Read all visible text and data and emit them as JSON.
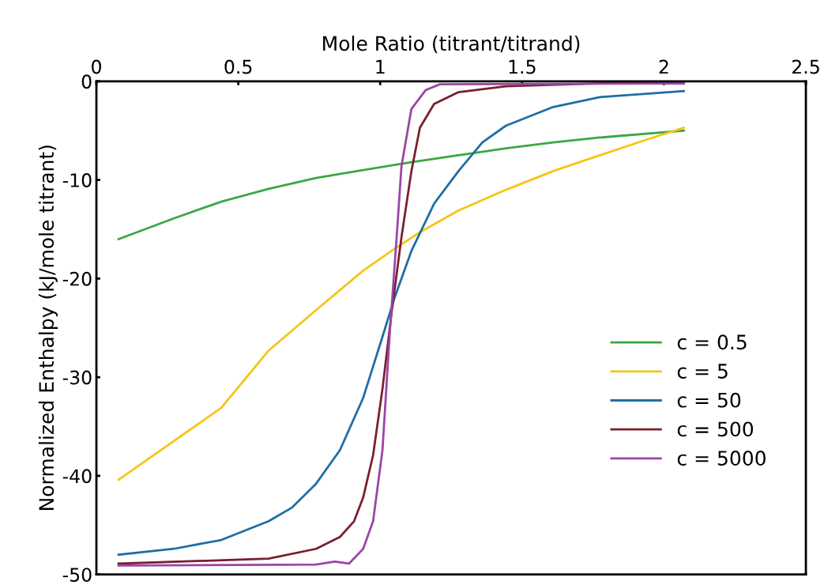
{
  "chart_data": {
    "type": "line",
    "xlabel": "Mole Ratio (titrant/titrand)",
    "ylabel": "Normalized Enthalpy (kJ/mole titrant)",
    "xlim": [
      0,
      2.5
    ],
    "xticks": [
      0,
      0.5,
      1,
      1.5,
      2,
      2.5
    ],
    "ylim": [
      -50,
      0
    ],
    "yticks": [
      -50,
      -40,
      -30,
      -20,
      -10,
      0
    ],
    "grid": false,
    "legend": "right",
    "marker": "none",
    "line_style": "solid",
    "series": [
      {
        "name": "c = 0.5",
        "color": "#3aa843",
        "x": [
          0.078,
          0.273,
          0.44,
          0.607,
          0.774,
          0.94,
          1.11,
          1.276,
          1.443,
          1.61,
          1.774,
          2.07
        ],
        "values": [
          -16.0,
          -13.9,
          -12.2,
          -10.9,
          -9.8,
          -9.0,
          -8.2,
          -7.5,
          -6.8,
          -6.2,
          -5.7,
          -5.0
        ]
      },
      {
        "name": "c = 5",
        "color": "#f5c518",
        "x": [
          0.078,
          0.44,
          0.607,
          0.774,
          0.94,
          1.05,
          1.14,
          1.276,
          1.443,
          1.61,
          1.774,
          1.94,
          2.07
        ],
        "values": [
          -40.4,
          -33.1,
          -27.3,
          -23.2,
          -19.2,
          -17.0,
          -15.3,
          -13.1,
          -11.0,
          -9.1,
          -7.5,
          -5.9,
          -4.7
        ]
      },
      {
        "name": "c = 50",
        "color": "#1f6fa3",
        "x": [
          0.078,
          0.273,
          0.44,
          0.607,
          0.69,
          0.774,
          0.858,
          0.94,
          1.008,
          1.05,
          1.11,
          1.19,
          1.276,
          1.36,
          1.443,
          1.61,
          1.774,
          2.07
        ],
        "values": [
          -48.0,
          -47.4,
          -46.5,
          -44.6,
          -43.2,
          -40.8,
          -37.4,
          -32.1,
          -25.9,
          -22.0,
          -17.2,
          -12.4,
          -9.1,
          -6.2,
          -4.5,
          -2.6,
          -1.6,
          -1.0
        ]
      },
      {
        "name": "c = 500",
        "color": "#7a1f2e",
        "x": [
          0.078,
          0.607,
          0.774,
          0.858,
          0.908,
          0.94,
          0.975,
          1.008,
          1.04,
          1.075,
          1.11,
          1.14,
          1.19,
          1.276,
          1.443,
          1.774,
          2.07
        ],
        "values": [
          -48.9,
          -48.4,
          -47.4,
          -46.2,
          -44.6,
          -42.2,
          -37.9,
          -31.2,
          -23.5,
          -15.8,
          -9.1,
          -4.7,
          -2.3,
          -1.1,
          -0.5,
          -0.2,
          -0.2
        ]
      },
      {
        "name": "c = 5000",
        "color": "#9b45a8",
        "x": [
          0.078,
          0.774,
          0.84,
          0.89,
          0.94,
          0.975,
          1.008,
          1.034,
          1.058,
          1.075,
          1.11,
          1.16,
          1.21,
          2.07
        ],
        "values": [
          -49.1,
          -49.0,
          -48.7,
          -48.9,
          -47.4,
          -44.6,
          -37.4,
          -25.4,
          -15.8,
          -8.6,
          -2.8,
          -0.9,
          -0.3,
          -0.2
        ]
      }
    ]
  }
}
